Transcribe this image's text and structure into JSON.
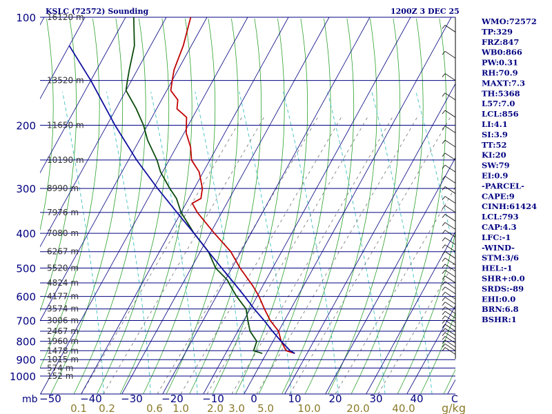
{
  "header": {
    "station": "KSLC (72572) Sounding",
    "time": "1200Z  3 DEC 25"
  },
  "indices": [
    "WMO:72572",
    "TP:329",
    "FRZ:847",
    "WB0:866",
    "PW:0.31",
    "RH:70.9",
    "MAXT:7.3",
    "TH:5368",
    "L57:7.0",
    "LCL:856",
    "LI:4.1",
    "SI:3.9",
    "TT:52",
    "KI:20",
    "SW:79",
    "EI:0.9",
    "-PARCEL-",
    "CAPE:9",
    "CINH:61424",
    "LCL:793",
    "CAP:4.3",
    "LFC:-1",
    "-WIND-",
    "STM:3/6",
    "HEL:-1",
    "SHR+:0.0",
    "SRDS:-89",
    "EHI:0.0",
    "BRN:6.8",
    "BSHR:1"
  ],
  "colors": {
    "temperature": "#c00000",
    "dewpoint": "#0a4a0a",
    "parcel": "#1010a0",
    "isobar": "#000080",
    "isotherm": "#000080",
    "dry_adiabat": "#2aa02a",
    "moist_adiabat": "#40c0c0",
    "mixing_ratio": "#707070",
    "text": "#000080"
  },
  "chart_data": {
    "type": "skew-t log-p",
    "title": "KSLC (72572) Sounding",
    "xlabel": "C",
    "ylabel": "mb",
    "xlim": [
      -50,
      50
    ],
    "ylim": [
      1050,
      100
    ],
    "pressure_ticks": [
      100,
      200,
      300,
      400,
      500,
      600,
      700,
      800,
      900,
      1000
    ],
    "temperature_ticks": [
      -50,
      -40,
      -30,
      -20,
      -10,
      0,
      10,
      20,
      30,
      40
    ],
    "mixing_ratio_unit": "g/kg",
    "mixing_ratio_ticks": [
      "0.1",
      "0.2",
      "0.6",
      "1.0",
      "2.0",
      "3.0",
      "5.0",
      "10.0",
      "20.0",
      "40.0"
    ],
    "height_labels": [
      {
        "p": 100,
        "label": "16120 m"
      },
      {
        "p": 150,
        "label": "13520 m"
      },
      {
        "p": 200,
        "label": "11650 m"
      },
      {
        "p": 250,
        "label": "10190 m"
      },
      {
        "p": 300,
        "label": "8990 m"
      },
      {
        "p": 350,
        "label": "7976 m"
      },
      {
        "p": 400,
        "label": "7080 m"
      },
      {
        "p": 450,
        "label": "6267 m"
      },
      {
        "p": 500,
        "label": "5520 m"
      },
      {
        "p": 550,
        "label": "4824 m"
      },
      {
        "p": 600,
        "label": "4177 m"
      },
      {
        "p": 650,
        "label": "3574 m"
      },
      {
        "p": 700,
        "label": "3006 m"
      },
      {
        "p": 750,
        "label": "2467 m"
      },
      {
        "p": 800,
        "label": "1960 m"
      },
      {
        "p": 850,
        "label": "1478 m"
      },
      {
        "p": 900,
        "label": "1015 m"
      },
      {
        "p": 950,
        "label": "574 m"
      },
      {
        "p": 1000,
        "label": "152 m"
      }
    ],
    "series": [
      {
        "name": "temperature",
        "points": [
          [
            865,
            7.0
          ],
          [
            850,
            4.5
          ],
          [
            800,
            2.0
          ],
          [
            750,
            0.0
          ],
          [
            700,
            -3.5
          ],
          [
            650,
            -6.5
          ],
          [
            600,
            -9.5
          ],
          [
            560,
            -12.5
          ],
          [
            500,
            -18.0
          ],
          [
            450,
            -22.5
          ],
          [
            400,
            -29.0
          ],
          [
            350,
            -36.0
          ],
          [
            330,
            -38.5
          ],
          [
            320,
            -37.0
          ],
          [
            300,
            -38.0
          ],
          [
            270,
            -41.0
          ],
          [
            250,
            -44.5
          ],
          [
            230,
            -46.5
          ],
          [
            210,
            -49.5
          ],
          [
            190,
            -51.5
          ],
          [
            180,
            -55.0
          ],
          [
            170,
            -56.0
          ],
          [
            160,
            -59.0
          ],
          [
            150,
            -60.0
          ],
          [
            140,
            -61.0
          ],
          [
            120,
            -62.0
          ],
          [
            100,
            -64.0
          ]
        ]
      },
      {
        "name": "dewpoint",
        "points": [
          [
            865,
            -1.0
          ],
          [
            850,
            -3.5
          ],
          [
            800,
            -4.0
          ],
          [
            750,
            -7.0
          ],
          [
            700,
            -9.0
          ],
          [
            650,
            -11.0
          ],
          [
            600,
            -15.0
          ],
          [
            560,
            -18.0
          ],
          [
            540,
            -19.5
          ],
          [
            500,
            -24.0
          ],
          [
            450,
            -28.0
          ],
          [
            400,
            -34.0
          ],
          [
            350,
            -40.0
          ],
          [
            320,
            -43.0
          ],
          [
            300,
            -46.0
          ],
          [
            270,
            -50.5
          ],
          [
            250,
            -53.0
          ],
          [
            220,
            -58.0
          ],
          [
            200,
            -61.0
          ],
          [
            180,
            -65.0
          ],
          [
            160,
            -70.0
          ],
          [
            150,
            -71.0
          ],
          [
            140,
            -72.0
          ],
          [
            120,
            -74.0
          ],
          [
            100,
            -78.0
          ]
        ]
      },
      {
        "name": "parcel",
        "points": [
          [
            865,
            7.0
          ],
          [
            850,
            5.5
          ],
          [
            800,
            2.0
          ],
          [
            750,
            -1.5
          ],
          [
            700,
            -5.0
          ],
          [
            650,
            -9.0
          ],
          [
            600,
            -13.0
          ],
          [
            550,
            -17.5
          ],
          [
            500,
            -22.5
          ],
          [
            450,
            -28.0
          ],
          [
            400,
            -34.0
          ],
          [
            350,
            -41.0
          ],
          [
            300,
            -49.0
          ],
          [
            250,
            -58.0
          ],
          [
            200,
            -68.0
          ],
          [
            150,
            -80.0
          ],
          [
            120,
            -90.0
          ]
        ]
      }
    ]
  }
}
